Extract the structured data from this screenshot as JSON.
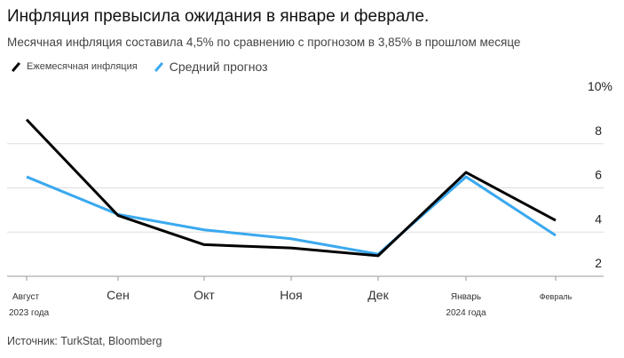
{
  "title": "Инфляция превысила ожидания в январе и феврале.",
  "subtitle": "Месячная инфляция составила 4,5% по сравнению с прогнозом в 3,85% в прошлом месяце",
  "source": "Источник: TurkStat, Bloomberg",
  "chart_data": {
    "type": "line",
    "categories": [
      "Август",
      "Сен",
      "Окт",
      "Ноя",
      "Дек",
      "Январь",
      "Февраль"
    ],
    "category_sublabels": [
      "2023 года",
      "",
      "",
      "",
      "",
      "2024 года",
      ""
    ],
    "y_ticks": [
      "10%",
      "8",
      "6",
      "4",
      "2"
    ],
    "ylim": [
      2,
      10
    ],
    "series": [
      {
        "name": "Ежемесячная инфляция",
        "color": "#000000",
        "values": [
          9.09,
          4.75,
          3.43,
          3.28,
          2.93,
          6.7,
          4.53
        ]
      },
      {
        "name": "Средний прогноз",
        "color": "#3aa9ef",
        "values": [
          6.5,
          4.8,
          4.1,
          3.7,
          3.0,
          6.5,
          3.85
        ]
      }
    ],
    "legend": "top-left"
  }
}
